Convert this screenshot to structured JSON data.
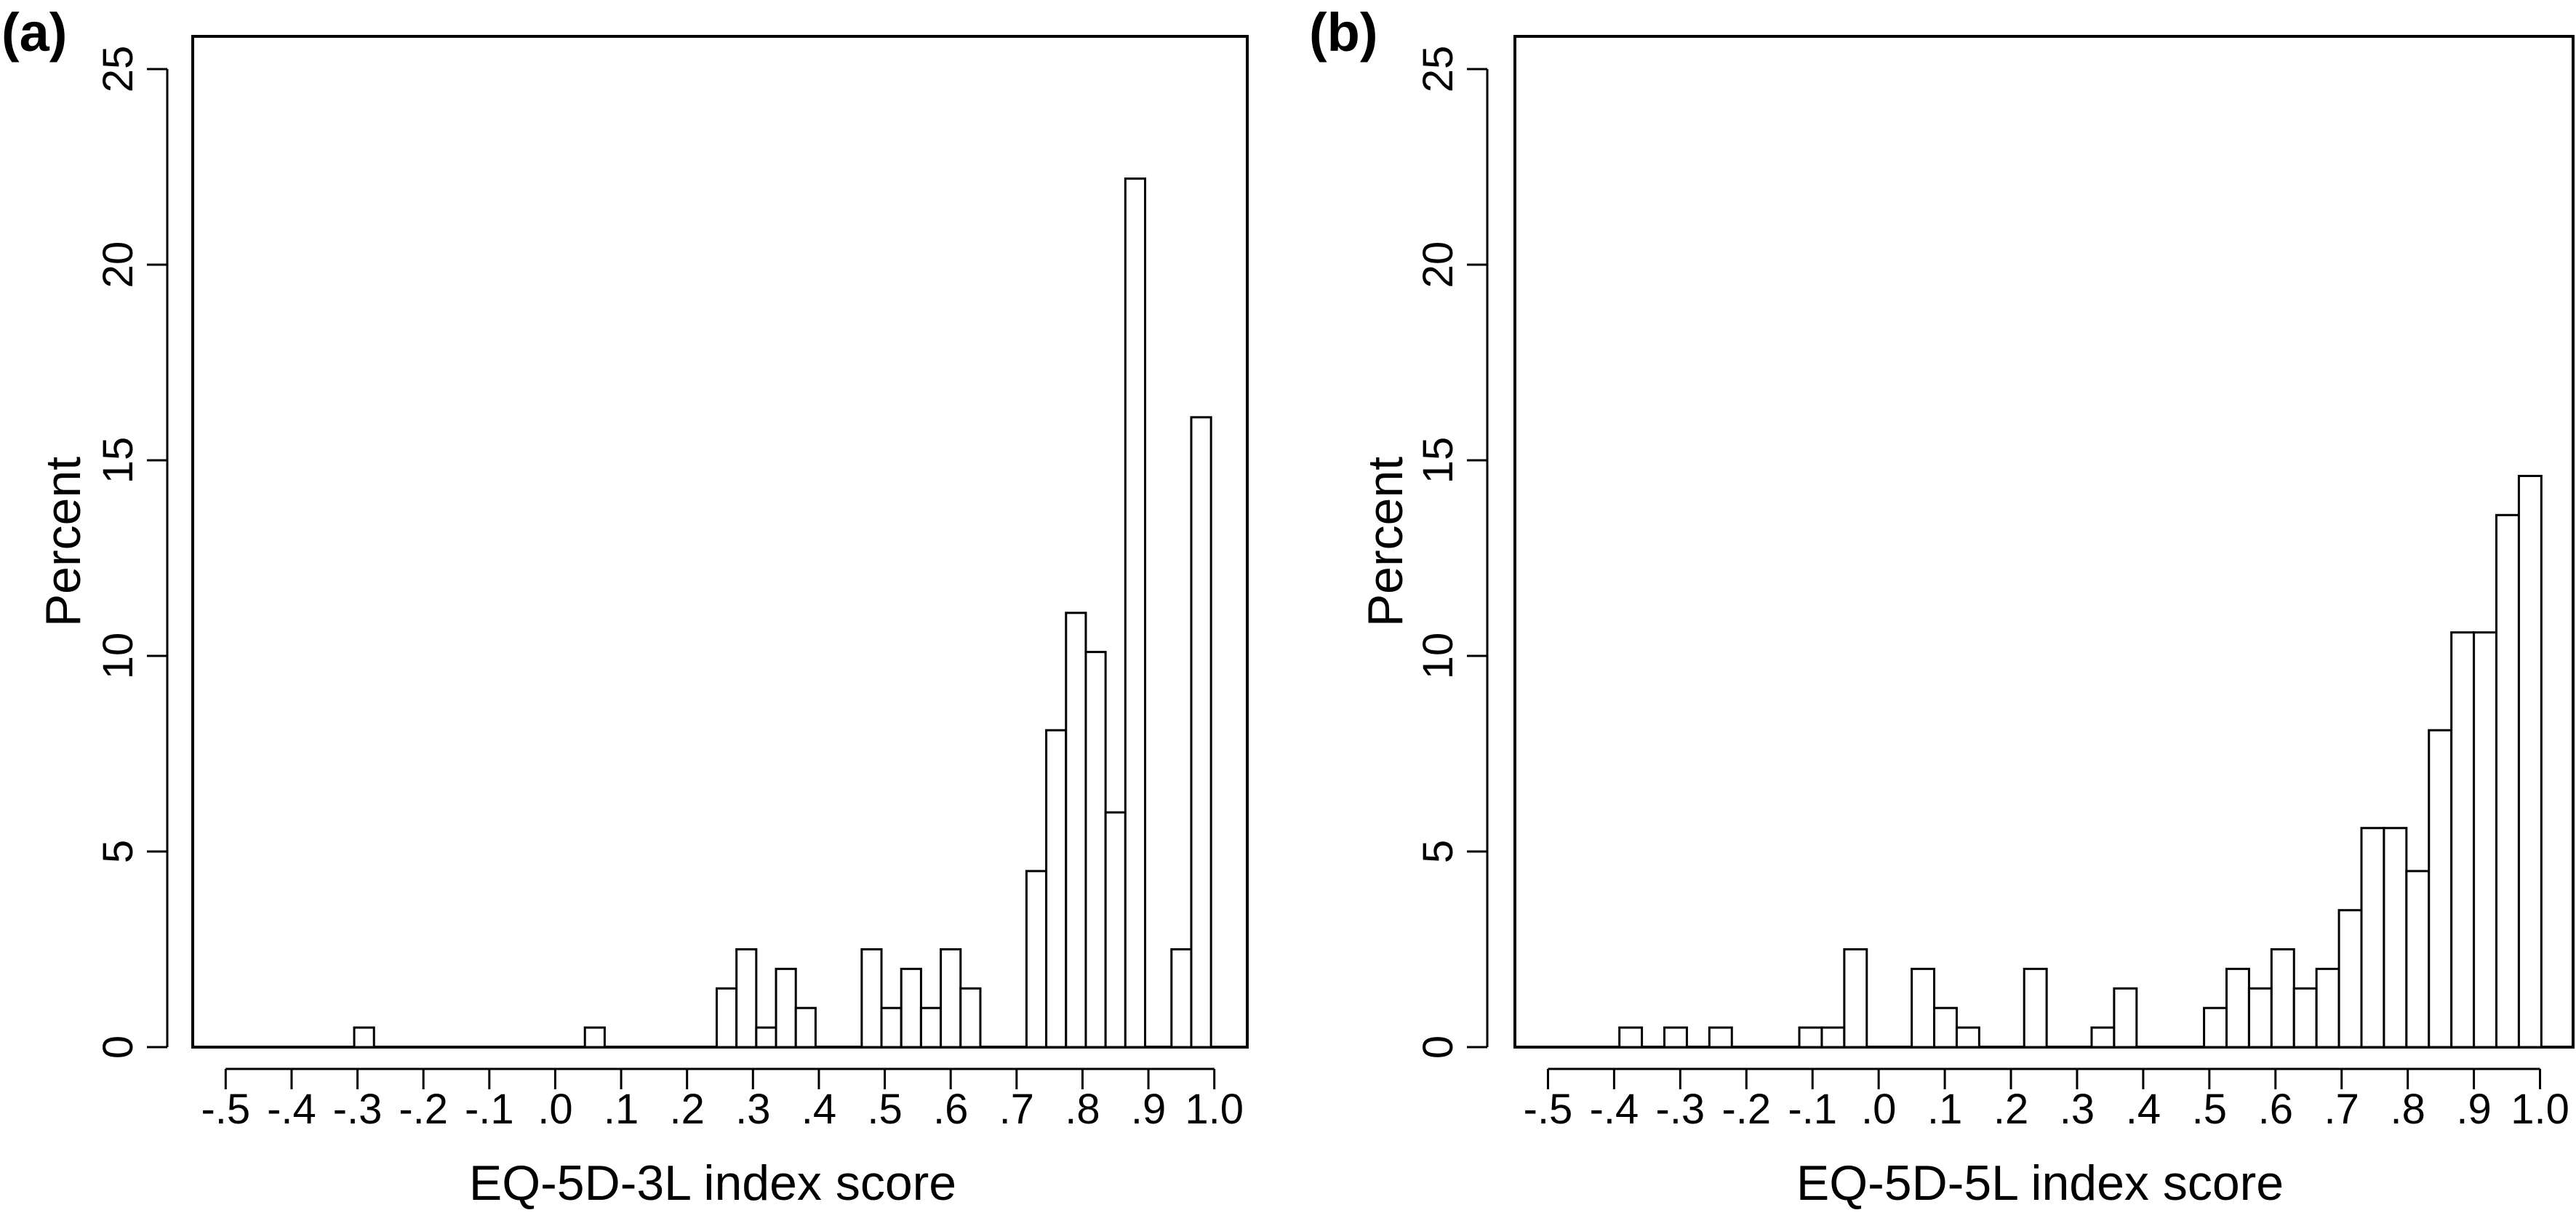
{
  "chart_data": [
    {
      "type": "bar",
      "panel_label": "(a)",
      "xlabel": "EQ-5D-3L index score",
      "ylabel": "Percent",
      "ylim": [
        0,
        25
      ],
      "yticks": [
        "0",
        "5",
        "10",
        "15",
        "20",
        "25"
      ],
      "xlim": [
        -0.55,
        1.05
      ],
      "xticks": [
        -0.5,
        -0.4,
        -0.3,
        -0.2,
        -0.1,
        0.0,
        0.1,
        0.2,
        0.3,
        0.4,
        0.5,
        0.6,
        0.7,
        0.8,
        0.9,
        1.0
      ],
      "xtick_labels": [
        "-.5",
        "-.4",
        "-.3",
        "-.2",
        "-.1",
        ".0",
        ".1",
        ".2",
        ".3",
        ".4",
        ".5",
        ".6",
        ".7",
        ".8",
        ".9",
        "1.0"
      ],
      "bin_width": 0.03,
      "bins": [
        {
          "x0": -0.305,
          "value": 0.5
        },
        {
          "x0": 0.045,
          "value": 0.5
        },
        {
          "x0": 0.245,
          "value": 1.5
        },
        {
          "x0": 0.275,
          "value": 2.5
        },
        {
          "x0": 0.305,
          "value": 0.5
        },
        {
          "x0": 0.335,
          "value": 2.0
        },
        {
          "x0": 0.365,
          "value": 1.0
        },
        {
          "x0": 0.465,
          "value": 2.5
        },
        {
          "x0": 0.495,
          "value": 1.0
        },
        {
          "x0": 0.525,
          "value": 2.0
        },
        {
          "x0": 0.555,
          "value": 1.0
        },
        {
          "x0": 0.585,
          "value": 2.5
        },
        {
          "x0": 0.615,
          "value": 1.5
        },
        {
          "x0": 0.715,
          "value": 4.5
        },
        {
          "x0": 0.745,
          "value": 8.1
        },
        {
          "x0": 0.775,
          "value": 11.1
        },
        {
          "x0": 0.805,
          "value": 10.1
        },
        {
          "x0": 0.835,
          "value": 6.0
        },
        {
          "x0": 0.865,
          "value": 22.2
        },
        {
          "x0": 0.935,
          "value": 2.5
        },
        {
          "x0": 0.965,
          "value": 16.1
        }
      ]
    },
    {
      "type": "bar",
      "panel_label": "(b)",
      "xlabel": "EQ-5D-5L index score",
      "ylabel": "Percent",
      "ylim": [
        0,
        25
      ],
      "yticks": [
        "0",
        "5",
        "10",
        "15",
        "20",
        "25"
      ],
      "xlim": [
        -0.55,
        1.05
      ],
      "xticks": [
        -0.5,
        -0.4,
        -0.3,
        -0.2,
        -0.1,
        0.0,
        0.1,
        0.2,
        0.3,
        0.4,
        0.5,
        0.6,
        0.7,
        0.8,
        0.9,
        1.0
      ],
      "xtick_labels": [
        "-.5",
        "-.4",
        "-.3",
        "-.2",
        "-.1",
        ".0",
        ".1",
        ".2",
        ".3",
        ".4",
        ".5",
        ".6",
        ".7",
        ".8",
        ".9",
        "1.0"
      ],
      "bin_width": 0.034,
      "bins": [
        {
          "x0": -0.392,
          "value": 0.5
        },
        {
          "x0": -0.324,
          "value": 0.5
        },
        {
          "x0": -0.256,
          "value": 0.5
        },
        {
          "x0": -0.12,
          "value": 0.5
        },
        {
          "x0": -0.086,
          "value": 0.5
        },
        {
          "x0": -0.052,
          "value": 2.5
        },
        {
          "x0": 0.05,
          "value": 2.0
        },
        {
          "x0": 0.084,
          "value": 1.0
        },
        {
          "x0": 0.118,
          "value": 0.5
        },
        {
          "x0": 0.22,
          "value": 2.0
        },
        {
          "x0": 0.322,
          "value": 0.5
        },
        {
          "x0": 0.356,
          "value": 1.5
        },
        {
          "x0": 0.492,
          "value": 1.0
        },
        {
          "x0": 0.526,
          "value": 2.0
        },
        {
          "x0": 0.56,
          "value": 1.5
        },
        {
          "x0": 0.594,
          "value": 2.5
        },
        {
          "x0": 0.628,
          "value": 1.5
        },
        {
          "x0": 0.662,
          "value": 2.0
        },
        {
          "x0": 0.696,
          "value": 3.5
        },
        {
          "x0": 0.73,
          "value": 5.6
        },
        {
          "x0": 0.764,
          "value": 5.6
        },
        {
          "x0": 0.798,
          "value": 4.5
        },
        {
          "x0": 0.832,
          "value": 8.1
        },
        {
          "x0": 0.866,
          "value": 10.6
        },
        {
          "x0": 0.9,
          "value": 10.6
        },
        {
          "x0": 0.934,
          "value": 13.6
        },
        {
          "x0": 0.968,
          "value": 14.6
        }
      ]
    }
  ]
}
